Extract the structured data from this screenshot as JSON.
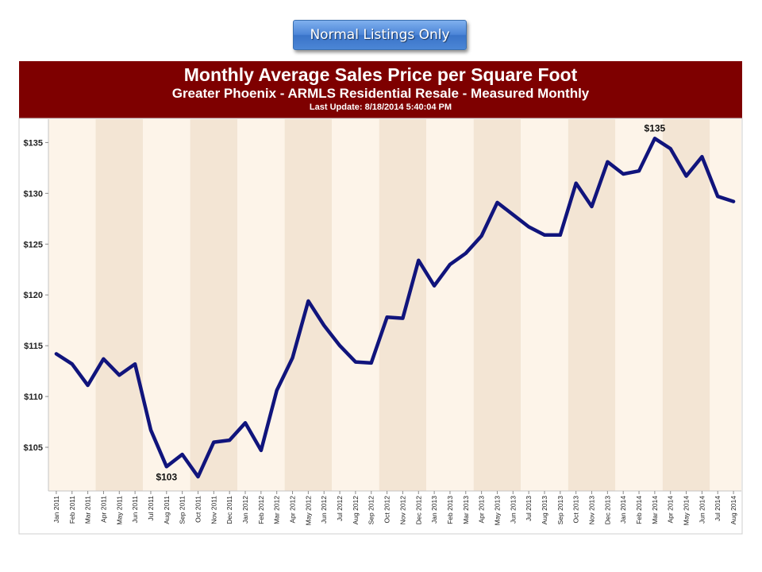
{
  "badge": {
    "label": "Normal Listings Only"
  },
  "chart_data": {
    "type": "line",
    "title": "Monthly Average Sales Price per Square Foot",
    "subtitle": "Greater Phoenix - ARMLS Residential Resale - Measured Monthly",
    "last_update": "Last Update: 8/18/2014 5:40:04 PM",
    "xlabel": "",
    "ylabel": "",
    "y_ticks": [
      "$105",
      "$110",
      "$115",
      "$120",
      "$125",
      "$130",
      "$135"
    ],
    "y_tick_values": [
      105,
      110,
      115,
      120,
      125,
      130,
      135
    ],
    "ylim": [
      100.7,
      137.3
    ],
    "grid": false,
    "band_colors": [
      "#fdf4e9",
      "#f3e5d4"
    ],
    "line_color": "#10147c",
    "categories": [
      "Jan 2011",
      "Feb 2011",
      "Mar 2011",
      "Apr 2011",
      "May 2011",
      "Jun 2011",
      "Jul 2011",
      "Aug 2011",
      "Sep 2011",
      "Oct 2011",
      "Nov 2011",
      "Dec 2011",
      "Jan 2012",
      "Feb 2012",
      "Mar 2012",
      "Apr 2012",
      "May 2012",
      "Jun 2012",
      "Jul 2012",
      "Aug 2012",
      "Sep 2012",
      "Oct 2012",
      "Nov 2012",
      "Dec 2012",
      "Jan 2013",
      "Feb 2013",
      "Mar 2013",
      "Apr 2013",
      "May 2013",
      "Jun 2013",
      "Jul 2013",
      "Aug 2013",
      "Sep 2013",
      "Oct 2013",
      "Nov 2013",
      "Dec 2013",
      "Jan 2014",
      "Feb 2014",
      "Mar 2014",
      "Apr 2014",
      "May 2014",
      "Jun 2014",
      "Jul 2014",
      "Aug 2014"
    ],
    "values": [
      114.2,
      113.2,
      111.1,
      113.7,
      112.1,
      113.2,
      106.7,
      103.1,
      104.3,
      102.1,
      105.5,
      105.7,
      107.4,
      104.7,
      110.6,
      113.8,
      119.4,
      117.0,
      115.0,
      113.4,
      113.3,
      117.8,
      117.7,
      123.4,
      120.9,
      123.0,
      124.1,
      125.8,
      129.1,
      127.9,
      126.7,
      125.9,
      125.9,
      131.0,
      128.7,
      133.1,
      131.9,
      132.2,
      135.4,
      134.4,
      131.7,
      133.6,
      129.7,
      129.2
    ],
    "annotations": [
      {
        "index": 7,
        "text": "$103"
      },
      {
        "index": 38,
        "text": "$135"
      }
    ]
  }
}
